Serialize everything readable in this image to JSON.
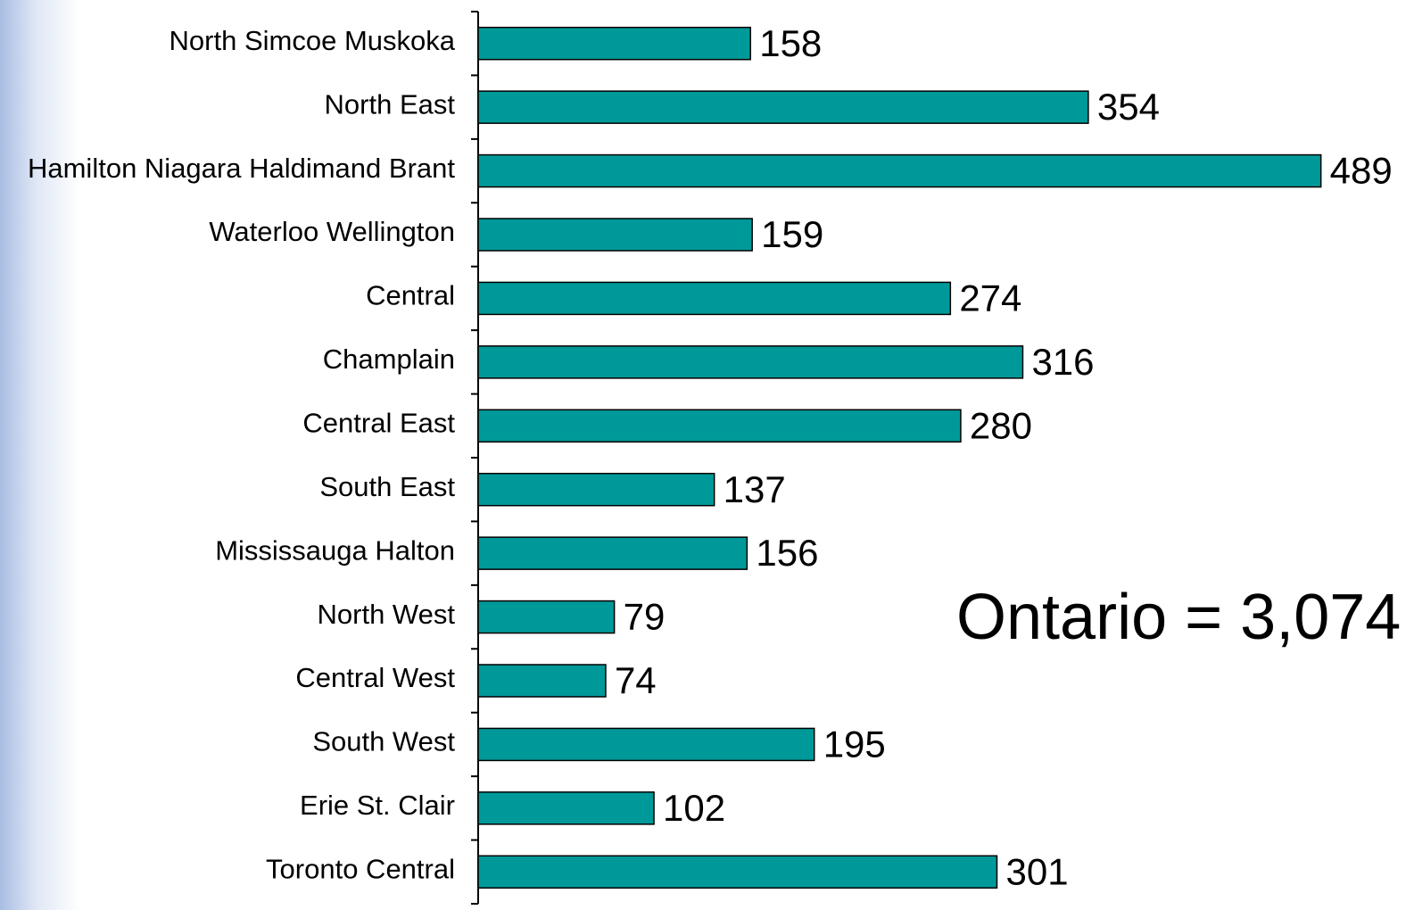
{
  "chart_data": {
    "type": "barh",
    "categories": [
      "North Simcoe Muskoka",
      "North East",
      "Hamilton Niagara Haldimand Brant",
      "Waterloo Wellington",
      "Central",
      "Champlain",
      "Central East",
      "South East",
      "Mississauga Halton",
      "North West",
      "Central West",
      "South West",
      "Erie St. Clair",
      "Toronto Central"
    ],
    "values": [
      158,
      354,
      489,
      159,
      274,
      316,
      280,
      137,
      156,
      79,
      74,
      195,
      102,
      301
    ],
    "color": "#009999",
    "xlim": [
      0,
      543
    ],
    "annotation": "Ontario = 3,074"
  }
}
